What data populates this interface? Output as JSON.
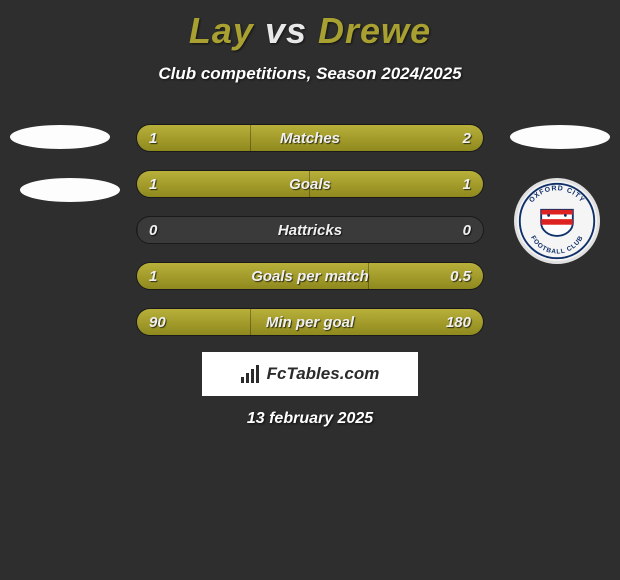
{
  "title": {
    "player1": "Lay",
    "vs": "vs",
    "player2": "Drewe",
    "player1_color": "#a8a030",
    "player2_color": "#a8a030",
    "vs_color": "#e8e8e8"
  },
  "subtitle": "Club competitions, Season 2024/2025",
  "club_badge": {
    "outer_text_top": "OXFORD CITY",
    "outer_text_bottom": "FOOTBALL CLUB"
  },
  "stats": {
    "bar_color": "#a8a030",
    "rows": [
      {
        "label": "Matches",
        "left": "1",
        "right": "2",
        "left_pct": 33,
        "right_pct": 67
      },
      {
        "label": "Goals",
        "left": "1",
        "right": "1",
        "left_pct": 50,
        "right_pct": 50
      },
      {
        "label": "Hattricks",
        "left": "0",
        "right": "0",
        "left_pct": 0,
        "right_pct": 0
      },
      {
        "label": "Goals per match",
        "left": "1",
        "right": "0.5",
        "left_pct": 67,
        "right_pct": 33
      },
      {
        "label": "Min per goal",
        "left": "90",
        "right": "180",
        "left_pct": 33,
        "right_pct": 67
      }
    ]
  },
  "footer_logo": "FcTables.com",
  "date": "13 february 2025",
  "colors": {
    "background": "#2e2e2e",
    "text": "#ffffff"
  }
}
